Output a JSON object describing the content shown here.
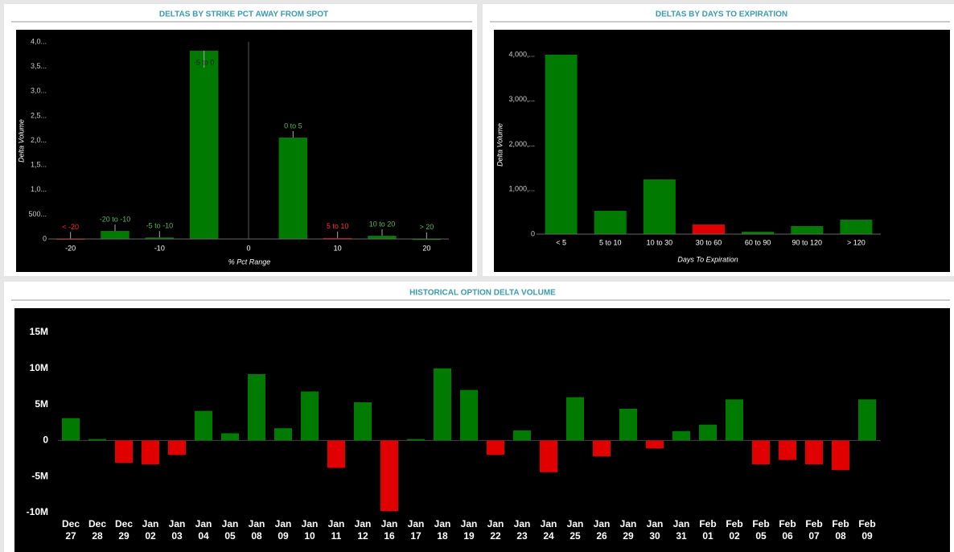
{
  "chart_data": [
    {
      "type": "bar",
      "title": "DELTAS BY STRIKE PCT AWAY FROM SPOT",
      "x_label": "% Pct Range",
      "y_label": "Delta Volume",
      "x": [
        -20,
        -15,
        -10,
        -5,
        5,
        10,
        15,
        20
      ],
      "point_labels": [
        "< -20",
        "-20 to -10",
        "-5 to -10",
        "-5 to 0",
        "0 to 5",
        "5 to 10",
        "10 to 20",
        "> 20"
      ],
      "values": [
        10,
        163,
        30,
        3820,
        2057,
        20,
        65,
        5
      ],
      "colors": [
        "#e00000",
        "#007a00",
        "#007a00",
        "#007a00",
        "#007a00",
        "#e00000",
        "#007a00",
        "#007a00"
      ],
      "xlim": [
        -22.5,
        22.5
      ],
      "xticks": [
        -20,
        -10,
        0,
        10,
        20
      ],
      "ylim": [
        0,
        4000
      ],
      "yticks": [
        0,
        {
          "value": 500,
          "label": "500..."
        },
        {
          "value": 1000,
          "label": "1,0..."
        },
        {
          "value": 1500,
          "label": "1,5..."
        },
        {
          "value": 2000,
          "label": "2,0..."
        },
        {
          "value": 2500,
          "label": "2,5..."
        },
        {
          "value": 3000,
          "label": "3,0..."
        },
        {
          "value": 3500,
          "label": "3,5..."
        },
        {
          "value": 4000,
          "label": "4,0..."
        }
      ]
    },
    {
      "type": "category_bar",
      "title": "DELTAS BY DAYS TO EXPIRATION",
      "x_label": "Days To Expiration",
      "y_label": "Delta Volume",
      "categories": [
        "< 5",
        "5 to 10",
        "10 to 30",
        "30 to 60",
        "60 to 90",
        "90 to 120",
        "> 120"
      ],
      "values": [
        4000,
        520,
        1220,
        215,
        55,
        180,
        323
      ],
      "colors": [
        "#007a00",
        "#007a00",
        "#007a00",
        "#e00000",
        "#007a00",
        "#007a00",
        "#007a00"
      ],
      "ylim": [
        0,
        4000
      ],
      "yticks": [
        0,
        {
          "value": 1000,
          "label": "1,000,..."
        },
        {
          "value": 2000,
          "label": "2,000,..."
        },
        {
          "value": 3000,
          "label": "3,000,..."
        },
        {
          "value": 4000,
          "label": "4,000,..."
        }
      ]
    },
    {
      "type": "signed_bar",
      "title": "HISTORICAL OPTION DELTA VOLUME",
      "categories": [
        [
          "Dec",
          "27"
        ],
        [
          "Dec",
          "28"
        ],
        [
          "Dec",
          "29"
        ],
        [
          "Jan",
          "02"
        ],
        [
          "Jan",
          "03"
        ],
        [
          "Jan",
          "04"
        ],
        [
          "Jan",
          "05"
        ],
        [
          "Jan",
          "08"
        ],
        [
          "Jan",
          "09"
        ],
        [
          "Jan",
          "10"
        ],
        [
          "Jan",
          "11"
        ],
        [
          "Jan",
          "12"
        ],
        [
          "Jan",
          "16"
        ],
        [
          "Jan",
          "17"
        ],
        [
          "Jan",
          "18"
        ],
        [
          "Jan",
          "19"
        ],
        [
          "Jan",
          "22"
        ],
        [
          "Jan",
          "23"
        ],
        [
          "Jan",
          "24"
        ],
        [
          "Jan",
          "25"
        ],
        [
          "Jan",
          "26"
        ],
        [
          "Jan",
          "29"
        ],
        [
          "Jan",
          "30"
        ],
        [
          "Jan",
          "31"
        ],
        [
          "Feb",
          "01"
        ],
        [
          "Feb",
          "02"
        ],
        [
          "Feb",
          "05"
        ],
        [
          "Feb",
          "06"
        ],
        [
          "Feb",
          "07"
        ],
        [
          "Feb",
          "08"
        ],
        [
          "Feb",
          "09"
        ]
      ],
      "values": [
        3100000,
        200000,
        -3100000,
        -3300000,
        -2000000,
        4100000,
        1000000,
        9200000,
        1700000,
        6800000,
        -3800000,
        5300000,
        -9800000,
        200000,
        10000000,
        7000000,
        -2000000,
        1400000,
        -4400000,
        6000000,
        -2200000,
        4400000,
        -1100000,
        1300000,
        2200000,
        5700000,
        -3300000,
        -2700000,
        -3300000,
        -4100000,
        5700000
      ],
      "positive_color": "#007a00",
      "negative_color": "#e00000",
      "ylim": [
        -10000000,
        15000000
      ],
      "yticks": [
        {
          "value": -10000000,
          "label": "-10M"
        },
        {
          "value": -5000000,
          "label": "-5M"
        },
        0,
        {
          "value": 5000000,
          "label": "5M"
        },
        {
          "value": 10000000,
          "label": "10M"
        },
        {
          "value": 15000000,
          "label": "15M"
        }
      ]
    }
  ]
}
